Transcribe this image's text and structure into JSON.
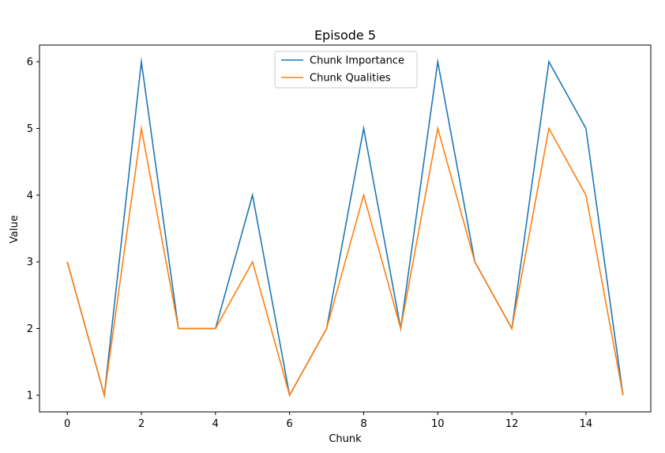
{
  "chart_data": {
    "type": "line",
    "title": "Episode 5",
    "xlabel": "Chunk",
    "ylabel": "Value",
    "x": [
      0,
      1,
      2,
      3,
      4,
      5,
      6,
      7,
      8,
      9,
      10,
      11,
      12,
      13,
      14,
      15
    ],
    "xlim": [
      -0.75,
      15.75
    ],
    "ylim": [
      0.75,
      6.25
    ],
    "xticks": [
      0,
      2,
      4,
      6,
      8,
      10,
      12,
      14
    ],
    "yticks": [
      1,
      2,
      3,
      4,
      5,
      6
    ],
    "grid": false,
    "legend_position": "top-center",
    "series": [
      {
        "name": "Chunk Importance",
        "color": "#1f77b4",
        "values": [
          3,
          1,
          6,
          2,
          2,
          4,
          1,
          2,
          5,
          2,
          6,
          3,
          2,
          6,
          5,
          1
        ]
      },
      {
        "name": "Chunk Qualities",
        "color": "#ff7f0e",
        "values": [
          3,
          1,
          5,
          2,
          2,
          3,
          1,
          2,
          4,
          2,
          5,
          3,
          2,
          5,
          4,
          1
        ]
      }
    ]
  }
}
